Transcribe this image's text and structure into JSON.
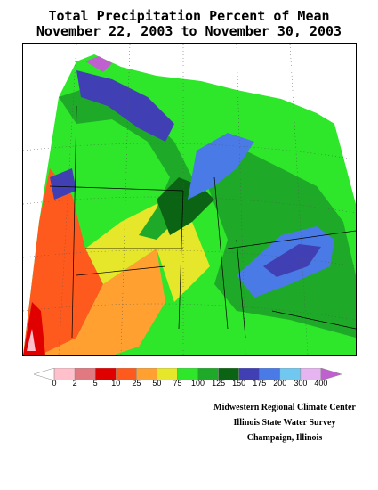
{
  "header": {
    "title_line1": "Total Precipitation Percent of Mean",
    "title_line2": "November 22, 2003 to November 30, 2003"
  },
  "legend": {
    "labels": [
      "0",
      "2",
      "5",
      "10",
      "25",
      "50",
      "75",
      "100",
      "125",
      "150",
      "175",
      "200",
      "300",
      "400"
    ],
    "colors": [
      "#ffffff",
      "#ffc0cb",
      "#e07a80",
      "#e00000",
      "#ff5a1e",
      "#ffa030",
      "#e6e62a",
      "#2ee62a",
      "#1eaa28",
      "#0a6414",
      "#4040b4",
      "#4a7ae6",
      "#70c8f0",
      "#e6b4f0",
      "#c060d0"
    ]
  },
  "map": {
    "region": "Midwest",
    "palette_meaning": {
      "dry": "#ff5a1e",
      "near_normal": "#2ee62a",
      "wet": "#4040b4"
    }
  },
  "credits": {
    "line1": "Midwestern Regional Climate Center",
    "line2": "Illinois State Water Survey",
    "line3": "Champaign, Illinois"
  }
}
